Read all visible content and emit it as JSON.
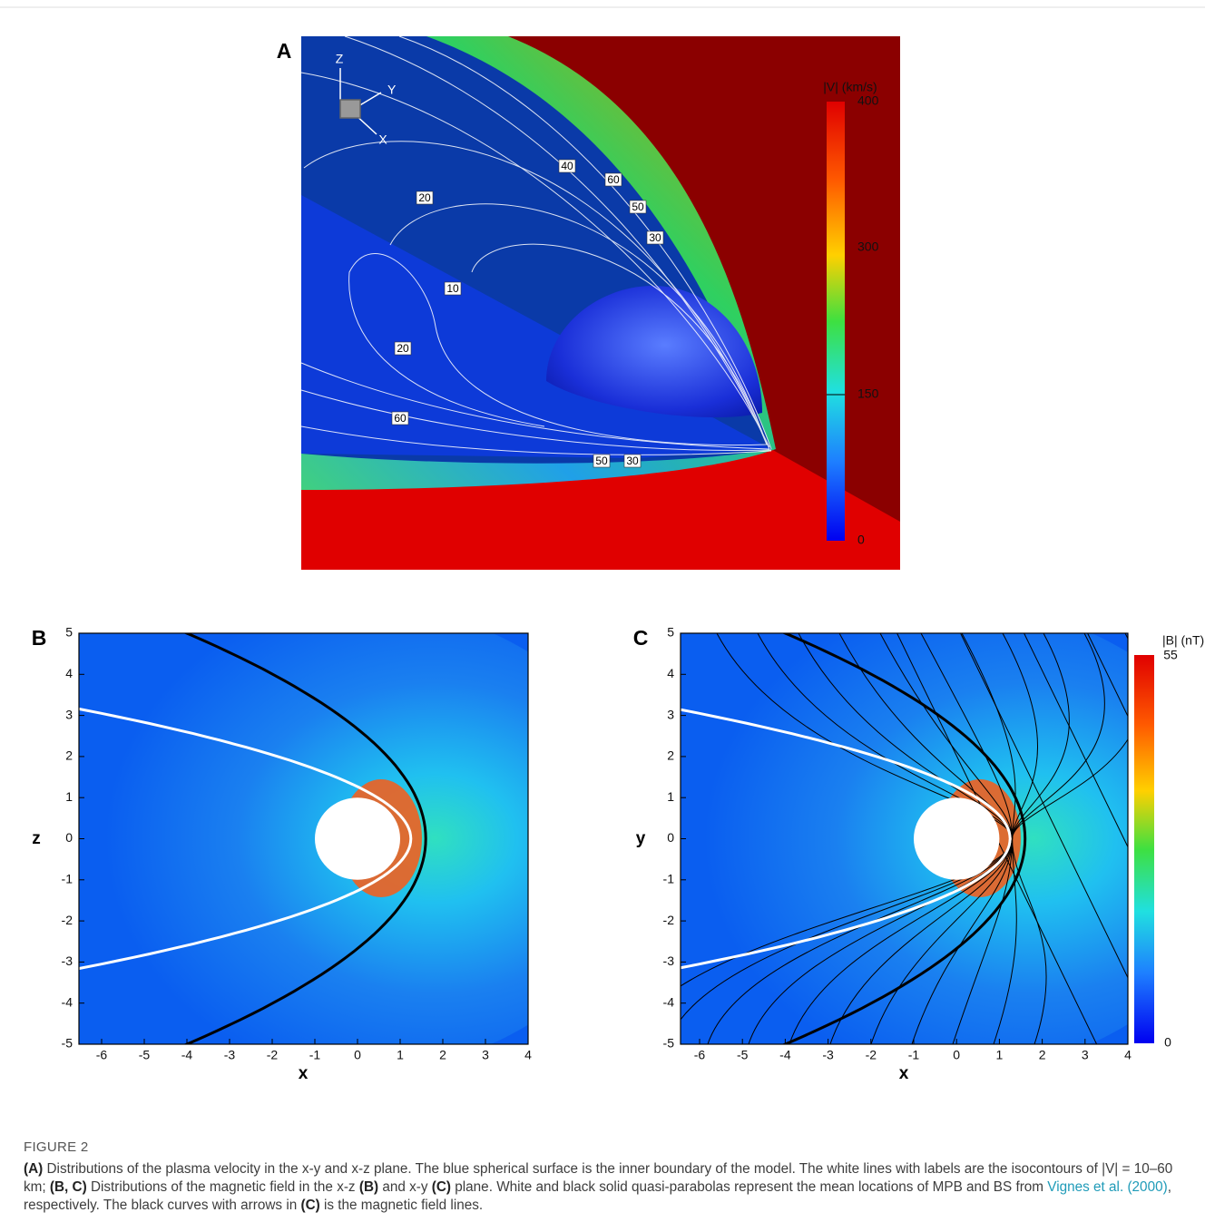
{
  "panels": [
    {
      "label": "A",
      "colorbar": {
        "title": "|V| (km/s)",
        "ticks": [
          400,
          300,
          150,
          0
        ]
      },
      "axes_triad": [
        "Z",
        "Y",
        "X"
      ],
      "contour_labels": [
        40,
        60,
        20,
        50,
        30,
        10,
        20,
        60,
        50,
        30
      ]
    },
    {
      "label": "B",
      "xlabel": "x",
      "ylabel": "z",
      "xticks": [
        -6,
        -5,
        -4,
        -3,
        -2,
        -1,
        0,
        1,
        2,
        3,
        4
      ],
      "yticks": [
        5,
        4,
        3,
        2,
        1,
        0,
        -1,
        -2,
        -3,
        -4,
        -5
      ]
    },
    {
      "label": "C",
      "xlabel": "x",
      "ylabel": "y",
      "xticks": [
        -6,
        -5,
        -4,
        -3,
        -2,
        -1,
        0,
        1,
        2,
        3,
        4
      ],
      "yticks": [
        5,
        4,
        3,
        2,
        1,
        0,
        -1,
        -2,
        -3,
        -4,
        -5
      ],
      "colorbar": {
        "title": "|B| (nT)",
        "ticks": [
          55,
          0
        ]
      }
    }
  ],
  "caption": {
    "figure": "FIGURE 2",
    "parts": [
      "(A)",
      " Distributions of the plasma velocity in the x-y and x-z plane. The blue spherical surface is the inner boundary of the model. The white lines with labels are the isocontours of |V| = 10–60 km; ",
      "(B, C)",
      " Distributions of the magnetic field in the x-z ",
      "(B)",
      " and x-y ",
      "(C)",
      " plane. White and black solid quasi-parabolas represent the mean locations of MPB and BS from ",
      "Vignes et al. (2000)",
      ", respectively. The black curves with arrows in ",
      "(C)",
      " is the magnetic field lines."
    ]
  }
}
